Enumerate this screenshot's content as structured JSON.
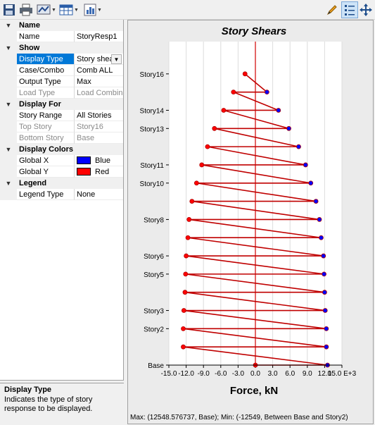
{
  "toolbar": {
    "buttons": [
      {
        "name": "save-icon"
      },
      {
        "name": "print-icon"
      },
      {
        "name": "chart-options-icon"
      },
      {
        "name": "table-icon"
      },
      {
        "name": "bar-chart-icon"
      },
      {
        "name": "pencil-icon"
      },
      {
        "name": "legend-list-icon"
      },
      {
        "name": "move-icon"
      }
    ]
  },
  "properties": {
    "categories": [
      {
        "label": "Name",
        "rows": [
          {
            "label": "Name",
            "value": "StoryResp1"
          }
        ]
      },
      {
        "label": "Show",
        "rows": [
          {
            "label": "Display Type",
            "value": "Story shea"
          },
          {
            "label": "Case/Combo",
            "value": "Comb ALL"
          },
          {
            "label": "Output Type",
            "value": "Max"
          },
          {
            "label": "Load Type",
            "value": "Load Combina"
          }
        ]
      },
      {
        "label": "Display For",
        "rows": [
          {
            "label": "Story Range",
            "value": "All Stories"
          },
          {
            "label": "Top Story",
            "value": "Story16"
          },
          {
            "label": "Bottom Story",
            "value": "Base"
          }
        ]
      },
      {
        "label": "Display Colors",
        "rows": [
          {
            "label": "Global X",
            "value": "Blue"
          },
          {
            "label": "Global Y",
            "value": "Red"
          }
        ]
      },
      {
        "label": "Legend",
        "rows": [
          {
            "label": "Legend Type",
            "value": "None"
          }
        ]
      }
    ]
  },
  "description": {
    "title": "Display Type",
    "text": "Indicates the type of story response to be displayed."
  },
  "colors": {
    "global_x": "#0000ff",
    "global_y": "#ff0000",
    "line": "#c00000",
    "selection": "#0078d7"
  },
  "status": "Max: (12548.576737, Base);   Min: (-12549, Between Base and Story2)",
  "chart_data": {
    "type": "line",
    "title": "Story Shears",
    "xlabel": "Force, kN",
    "x_tick_labels": [
      "-15.0",
      "-12.0",
      "-9.0",
      "-6.0",
      "-3.0",
      "0.0",
      "3.0",
      "6.0",
      "9.0",
      "12.0",
      "15.0 E+3"
    ],
    "x_ticks": [
      -15,
      -12,
      -9,
      -6,
      -3,
      0,
      3,
      6,
      9,
      12,
      15
    ],
    "xlim": [
      -15,
      15
    ],
    "story_labels": [
      "Base",
      "Story2",
      "Story3",
      "Story5",
      "Story6",
      "Story8",
      "Story10",
      "Story11",
      "Story13",
      "Story14",
      "Story16"
    ],
    "story_levels": [
      0,
      2,
      3,
      5,
      6,
      8,
      10,
      11,
      13,
      14,
      16
    ],
    "ylim": [
      0,
      17
    ],
    "grid": true,
    "series": [
      {
        "color": "#ff0000",
        "points": [
          [
            0.0,
            0.0
          ],
          [
            12.5,
            0.0
          ],
          [
            -12.5,
            1.0
          ],
          [
            12.3,
            1.0
          ],
          [
            -12.5,
            2.0
          ],
          [
            12.3,
            2.0
          ],
          [
            -12.4,
            3.0
          ],
          [
            12.1,
            3.0
          ],
          [
            -12.2,
            4.0
          ],
          [
            12.0,
            4.0
          ],
          [
            -12.1,
            5.0
          ],
          [
            11.9,
            5.0
          ],
          [
            -12.0,
            6.0
          ],
          [
            11.8,
            6.0
          ],
          [
            -11.7,
            7.0
          ],
          [
            11.4,
            7.0
          ],
          [
            -11.5,
            8.0
          ],
          [
            11.1,
            8.0
          ],
          [
            -11.0,
            9.0
          ],
          [
            10.5,
            9.0
          ],
          [
            -10.2,
            10.0
          ],
          [
            9.6,
            10.0
          ],
          [
            -9.3,
            11.0
          ],
          [
            8.7,
            11.0
          ],
          [
            -8.3,
            12.0
          ],
          [
            7.5,
            12.0
          ],
          [
            -7.1,
            13.0
          ],
          [
            5.8,
            13.0
          ],
          [
            -5.5,
            14.0
          ],
          [
            4.0,
            14.0
          ],
          [
            -3.8,
            15.0
          ],
          [
            2.0,
            15.0
          ],
          [
            -1.8,
            16.0
          ]
        ]
      }
    ]
  }
}
